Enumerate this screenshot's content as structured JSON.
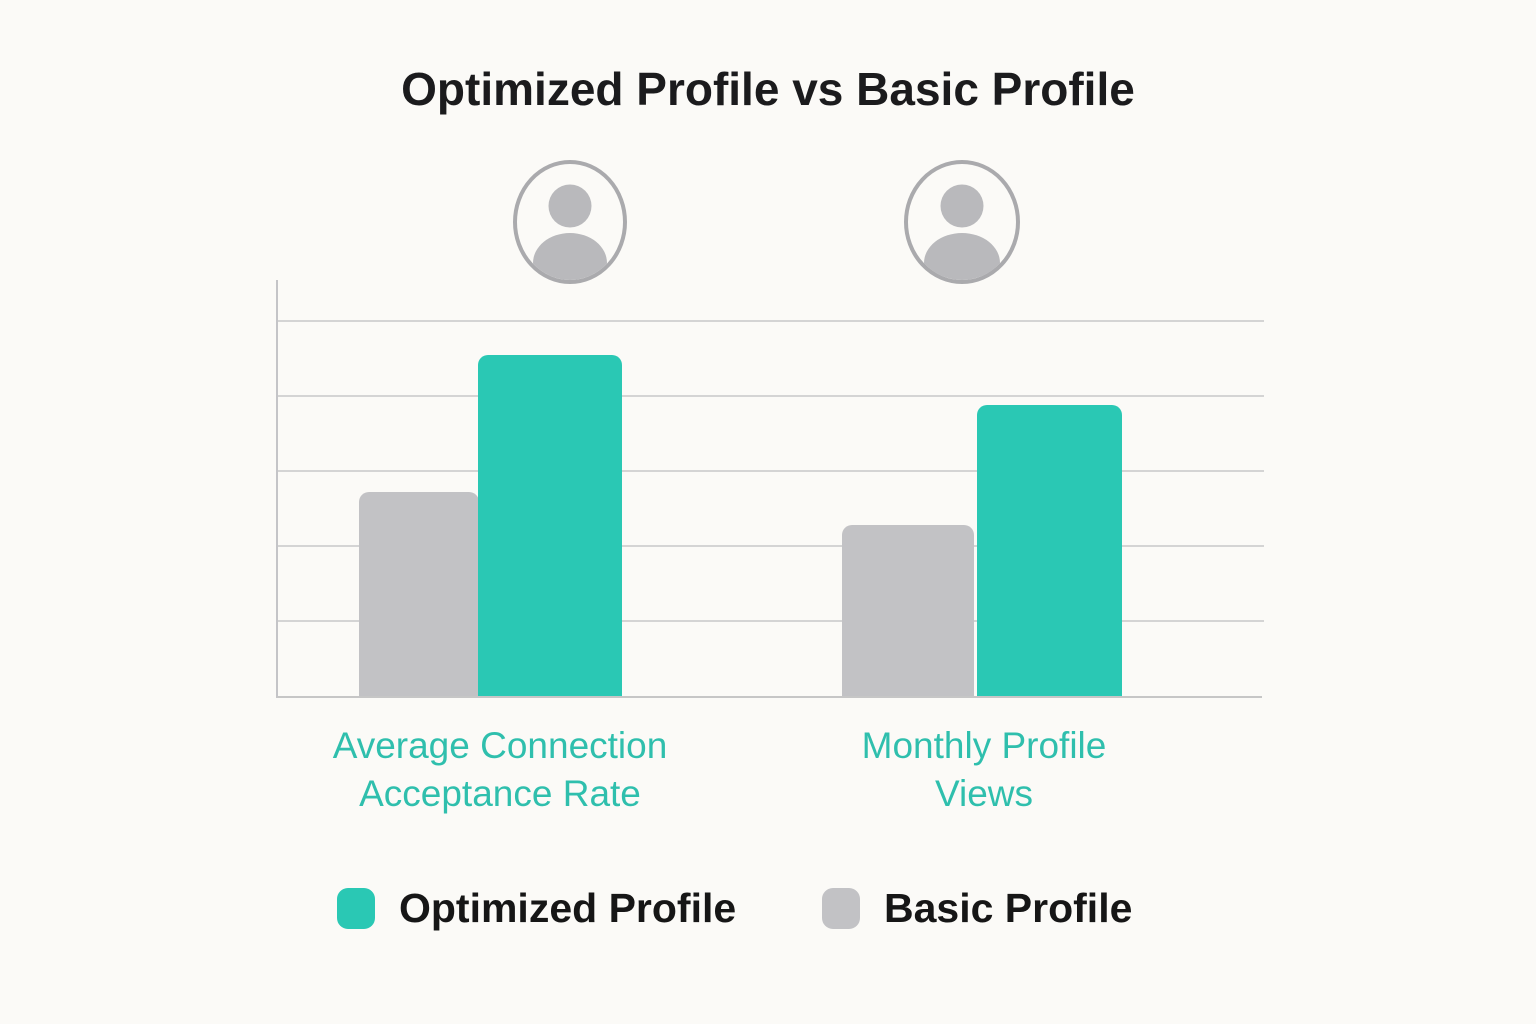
{
  "title": "Optimized Profile vs Basic Profile",
  "colors": {
    "background": "#FBFAF7",
    "title_text": "#1B1B1D",
    "optimized": "#2AC8B4",
    "basic": "#C2C2C5",
    "category_label": "#2FBFAD",
    "legend_text": "#161616",
    "gridline": "#D4D4D4",
    "axis": "#C4C4C7",
    "avatar_fill": "#B9B9BC",
    "avatar_outline": "#AAAAAD"
  },
  "chart_data": {
    "type": "bar",
    "title": "Optimized Profile vs Basic Profile",
    "categories": [
      "Average Connection Acceptance Rate",
      "Monthly Profile Views"
    ],
    "series": [
      {
        "name": "Optimized Profile",
        "color": "#2AC8B4",
        "values": [
          82,
          70
        ]
      },
      {
        "name": "Basic Profile",
        "color": "#C2C2C5",
        "values": [
          49,
          41
        ]
      }
    ],
    "xlabel": "",
    "ylabel": "",
    "ylim": [
      0,
      100
    ],
    "yaxis_labels_visible": false,
    "grid": true,
    "gridline_count": 5,
    "legend_position": "bottom",
    "note": "No numeric axis labels are shown in the image; bar values estimated as percent of plot height"
  },
  "category_labels": [
    {
      "line1": "Average Connection",
      "line2": "Acceptance Rate"
    },
    {
      "line1": "Monthly Profile",
      "line2": "Views"
    }
  ],
  "legend": {
    "items": [
      {
        "label": "Optimized Profile",
        "color": "#2AC8B4"
      },
      {
        "label": "Basic Profile",
        "color": "#C2C2C5"
      }
    ]
  },
  "icons": {
    "avatar_left": "avatar-person-icon",
    "avatar_right": "avatar-person-icon"
  }
}
